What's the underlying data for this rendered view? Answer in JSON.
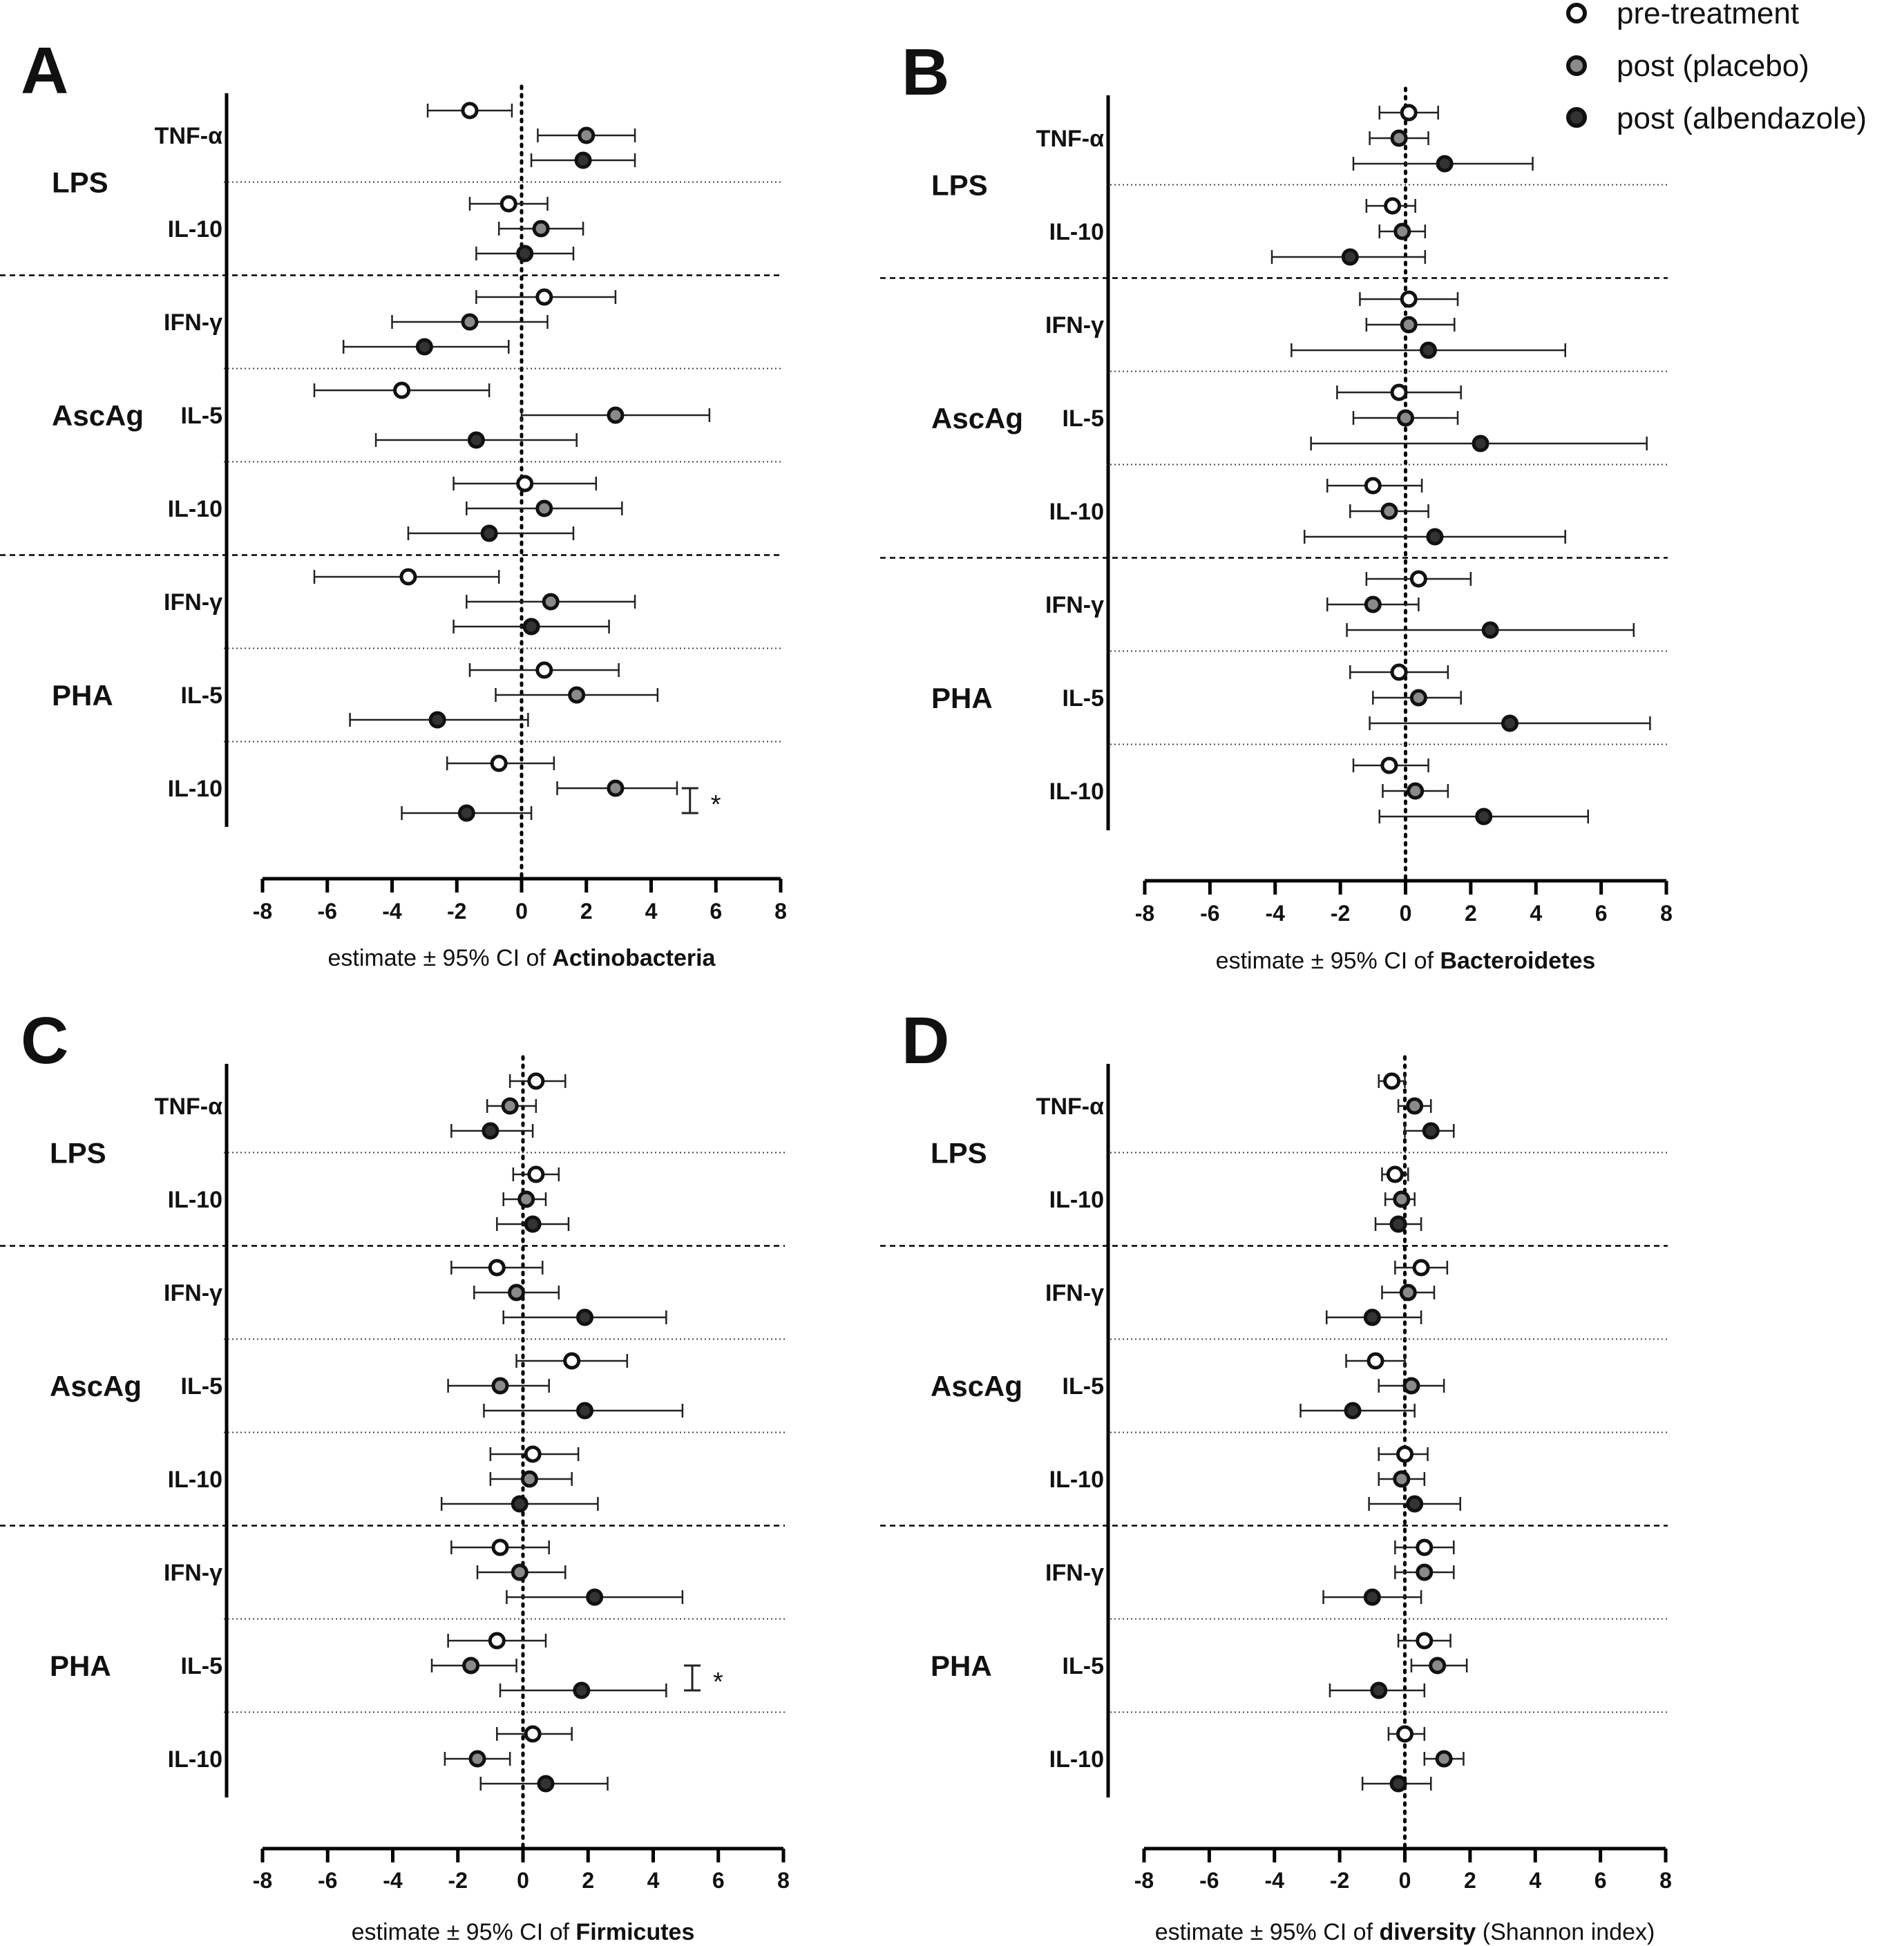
{
  "legend": [
    {
      "label": "pre-treatment",
      "fill": "#ffffff"
    },
    {
      "label": "post (placebo)",
      "fill": "#8a8a8a"
    },
    {
      "label": "post (albendazole)",
      "fill": "#333333"
    }
  ],
  "colors": {
    "axis": "#000000",
    "whisker": "#222222",
    "marker_edge": "#111111"
  },
  "significance_mark": "*",
  "chart_data": [
    {
      "panel": "A",
      "type": "forest",
      "xlabel_prefix": "estimate ± 95% CI of ",
      "xlabel_bold": "Actinobacteria",
      "xlabel_suffix": "",
      "xlim": [
        -8,
        8
      ],
      "xticks": [
        -8,
        -6,
        -4,
        -2,
        0,
        2,
        4,
        6,
        8
      ],
      "groups": [
        {
          "stimulus": "LPS",
          "cytokines": [
            {
              "name": "TNF-α",
              "points": [
                [
                  -1.6,
                  -2.9,
                  -0.3
                ],
                [
                  2.0,
                  0.5,
                  3.5
                ],
                [
                  1.9,
                  0.3,
                  3.5
                ]
              ]
            },
            {
              "name": "IL-10",
              "points": [
                [
                  -0.4,
                  -1.6,
                  0.8
                ],
                [
                  0.6,
                  -0.7,
                  1.9
                ],
                [
                  0.1,
                  -1.4,
                  1.6
                ]
              ]
            }
          ]
        },
        {
          "stimulus": "AscAg",
          "cytokines": [
            {
              "name": "IFN-γ",
              "points": [
                [
                  0.7,
                  -1.4,
                  2.9
                ],
                [
                  -1.6,
                  -4.0,
                  0.8
                ],
                [
                  -3.0,
                  -5.5,
                  -0.4
                ]
              ]
            },
            {
              "name": "IL-5",
              "points": [
                [
                  -3.7,
                  -6.4,
                  -1.0
                ],
                [
                  2.9,
                  0.0,
                  5.8
                ],
                [
                  -1.4,
                  -4.5,
                  1.7
                ]
              ]
            },
            {
              "name": "IL-10",
              "points": [
                [
                  0.1,
                  -2.1,
                  2.3
                ],
                [
                  0.7,
                  -1.7,
                  3.1
                ],
                [
                  -1.0,
                  -3.5,
                  1.6
                ]
              ]
            }
          ]
        },
        {
          "stimulus": "PHA",
          "cytokines": [
            {
              "name": "IFN-γ",
              "points": [
                [
                  -3.5,
                  -6.4,
                  -0.7
                ],
                [
                  0.9,
                  -1.7,
                  3.5
                ],
                [
                  0.3,
                  -2.1,
                  2.7
                ]
              ]
            },
            {
              "name": "IL-5",
              "points": [
                [
                  0.7,
                  -1.6,
                  3.0
                ],
                [
                  1.7,
                  -0.8,
                  4.2
                ],
                [
                  -2.6,
                  -5.3,
                  0.2
                ]
              ]
            },
            {
              "name": "IL-10",
              "points": [
                [
                  -0.7,
                  -2.3,
                  1.0
                ],
                [
                  2.9,
                  1.1,
                  4.8
                ],
                [
                  -1.7,
                  -3.7,
                  0.3
                ]
              ],
              "significance": {
                "between": [
                  1,
                  2
                ],
                "x": 5.2
              }
            }
          ]
        }
      ]
    },
    {
      "panel": "B",
      "type": "forest",
      "xlabel_prefix": "estimate ± 95% CI of ",
      "xlabel_bold": "Bacteroidetes",
      "xlabel_suffix": "",
      "xlim": [
        -8,
        8
      ],
      "xticks": [
        -8,
        -6,
        -4,
        -2,
        0,
        2,
        4,
        6,
        8
      ],
      "groups": [
        {
          "stimulus": "LPS",
          "cytokines": [
            {
              "name": "TNF-α",
              "points": [
                [
                  0.1,
                  -0.8,
                  1.0
                ],
                [
                  -0.2,
                  -1.1,
                  0.7
                ],
                [
                  1.2,
                  -1.6,
                  3.9
                ]
              ]
            },
            {
              "name": "IL-10",
              "points": [
                [
                  -0.4,
                  -1.2,
                  0.3
                ],
                [
                  -0.1,
                  -0.8,
                  0.6
                ],
                [
                  -1.7,
                  -4.1,
                  0.6
                ]
              ]
            }
          ]
        },
        {
          "stimulus": "AscAg",
          "cytokines": [
            {
              "name": "IFN-γ",
              "points": [
                [
                  0.1,
                  -1.4,
                  1.6
                ],
                [
                  0.1,
                  -1.2,
                  1.5
                ],
                [
                  0.7,
                  -3.5,
                  4.9
                ]
              ]
            },
            {
              "name": "IL-5",
              "points": [
                [
                  -0.2,
                  -2.1,
                  1.7
                ],
                [
                  0.0,
                  -1.6,
                  1.6
                ],
                [
                  2.3,
                  -2.9,
                  7.4
                ]
              ]
            },
            {
              "name": "IL-10",
              "points": [
                [
                  -1.0,
                  -2.4,
                  0.5
                ],
                [
                  -0.5,
                  -1.7,
                  0.7
                ],
                [
                  0.9,
                  -3.1,
                  4.9
                ]
              ]
            }
          ]
        },
        {
          "stimulus": "PHA",
          "cytokines": [
            {
              "name": "IFN-γ",
              "points": [
                [
                  0.4,
                  -1.2,
                  2.0
                ],
                [
                  -1.0,
                  -2.4,
                  0.4
                ],
                [
                  2.6,
                  -1.8,
                  7.0
                ]
              ]
            },
            {
              "name": "IL-5",
              "points": [
                [
                  -0.2,
                  -1.7,
                  1.3
                ],
                [
                  0.4,
                  -1.0,
                  1.7
                ],
                [
                  3.2,
                  -1.1,
                  7.5
                ]
              ]
            },
            {
              "name": "IL-10",
              "points": [
                [
                  -0.5,
                  -1.6,
                  0.7
                ],
                [
                  0.3,
                  -0.7,
                  1.3
                ],
                [
                  2.4,
                  -0.8,
                  5.6
                ]
              ]
            }
          ]
        }
      ]
    },
    {
      "panel": "C",
      "type": "forest",
      "xlabel_prefix": "estimate ± 95% CI of ",
      "xlabel_bold": "Firmicutes",
      "xlabel_suffix": "",
      "xlim": [
        -8,
        8
      ],
      "xticks": [
        -8,
        -6,
        -4,
        -2,
        0,
        2,
        4,
        6,
        8
      ],
      "groups": [
        {
          "stimulus": "LPS",
          "cytokines": [
            {
              "name": "TNF-α",
              "points": [
                [
                  0.4,
                  -0.4,
                  1.3
                ],
                [
                  -0.4,
                  -1.1,
                  0.4
                ],
                [
                  -1.0,
                  -2.2,
                  0.3
                ]
              ]
            },
            {
              "name": "IL-10",
              "points": [
                [
                  0.4,
                  -0.3,
                  1.1
                ],
                [
                  0.1,
                  -0.6,
                  0.7
                ],
                [
                  0.3,
                  -0.8,
                  1.4
                ]
              ]
            }
          ]
        },
        {
          "stimulus": "AscAg",
          "cytokines": [
            {
              "name": "IFN-γ",
              "points": [
                [
                  -0.8,
                  -2.2,
                  0.6
                ],
                [
                  -0.2,
                  -1.5,
                  1.1
                ],
                [
                  1.9,
                  -0.6,
                  4.4
                ]
              ]
            },
            {
              "name": "IL-5",
              "points": [
                [
                  1.5,
                  -0.2,
                  3.2
                ],
                [
                  -0.7,
                  -2.3,
                  0.8
                ],
                [
                  1.9,
                  -1.2,
                  4.9
                ]
              ]
            },
            {
              "name": "IL-10",
              "points": [
                [
                  0.3,
                  -1.0,
                  1.7
                ],
                [
                  0.2,
                  -1.0,
                  1.5
                ],
                [
                  -0.1,
                  -2.5,
                  2.3
                ]
              ]
            }
          ]
        },
        {
          "stimulus": "PHA",
          "cytokines": [
            {
              "name": "IFN-γ",
              "points": [
                [
                  -0.7,
                  -2.2,
                  0.8
                ],
                [
                  -0.1,
                  -1.4,
                  1.3
                ],
                [
                  2.2,
                  -0.5,
                  4.9
                ]
              ]
            },
            {
              "name": "IL-5",
              "points": [
                [
                  -0.8,
                  -2.3,
                  0.7
                ],
                [
                  -1.6,
                  -2.8,
                  -0.2
                ],
                [
                  1.8,
                  -0.7,
                  4.4
                ]
              ],
              "significance": {
                "between": [
                  1,
                  2
                ],
                "x": 5.2
              }
            },
            {
              "name": "IL-10",
              "points": [
                [
                  0.3,
                  -0.8,
                  1.5
                ],
                [
                  -1.4,
                  -2.4,
                  -0.4
                ],
                [
                  0.7,
                  -1.3,
                  2.6
                ]
              ]
            }
          ]
        }
      ]
    },
    {
      "panel": "D",
      "type": "forest",
      "xlabel_prefix": "estimate ± 95% CI of ",
      "xlabel_bold": "diversity",
      "xlabel_suffix": " (Shannon index)",
      "xlim": [
        -8,
        8
      ],
      "xticks": [
        -8,
        -6,
        -4,
        -2,
        0,
        2,
        4,
        6,
        8
      ],
      "groups": [
        {
          "stimulus": "LPS",
          "cytokines": [
            {
              "name": "TNF-α",
              "points": [
                [
                  -0.4,
                  -0.8,
                  0.0
                ],
                [
                  0.3,
                  -0.2,
                  0.8
                ],
                [
                  0.8,
                  0.0,
                  1.5
                ]
              ]
            },
            {
              "name": "IL-10",
              "points": [
                [
                  -0.3,
                  -0.7,
                  0.1
                ],
                [
                  -0.1,
                  -0.6,
                  0.3
                ],
                [
                  -0.2,
                  -0.9,
                  0.5
                ]
              ]
            }
          ]
        },
        {
          "stimulus": "AscAg",
          "cytokines": [
            {
              "name": "IFN-γ",
              "points": [
                [
                  0.5,
                  -0.3,
                  1.3
                ],
                [
                  0.1,
                  -0.7,
                  0.9
                ],
                [
                  -1.0,
                  -2.4,
                  0.5
                ]
              ]
            },
            {
              "name": "IL-5",
              "points": [
                [
                  -0.9,
                  -1.8,
                  0.0
                ],
                [
                  0.2,
                  -0.8,
                  1.2
                ],
                [
                  -1.6,
                  -3.2,
                  0.3
                ]
              ]
            },
            {
              "name": "IL-10",
              "points": [
                [
                  0.0,
                  -0.8,
                  0.7
                ],
                [
                  -0.1,
                  -0.8,
                  0.6
                ],
                [
                  0.3,
                  -1.1,
                  1.7
                ]
              ]
            }
          ]
        },
        {
          "stimulus": "PHA",
          "cytokines": [
            {
              "name": "IFN-γ",
              "points": [
                [
                  0.6,
                  -0.3,
                  1.5
                ],
                [
                  0.6,
                  -0.3,
                  1.5
                ],
                [
                  -1.0,
                  -2.5,
                  0.5
                ]
              ]
            },
            {
              "name": "IL-5",
              "points": [
                [
                  0.6,
                  -0.2,
                  1.4
                ],
                [
                  1.0,
                  0.2,
                  1.9
                ],
                [
                  -0.8,
                  -2.3,
                  0.6
                ]
              ]
            },
            {
              "name": "IL-10",
              "points": [
                [
                  0.0,
                  -0.5,
                  0.6
                ],
                [
                  1.2,
                  0.6,
                  1.8
                ],
                [
                  -0.2,
                  -1.3,
                  0.8
                ]
              ]
            }
          ]
        }
      ]
    }
  ]
}
